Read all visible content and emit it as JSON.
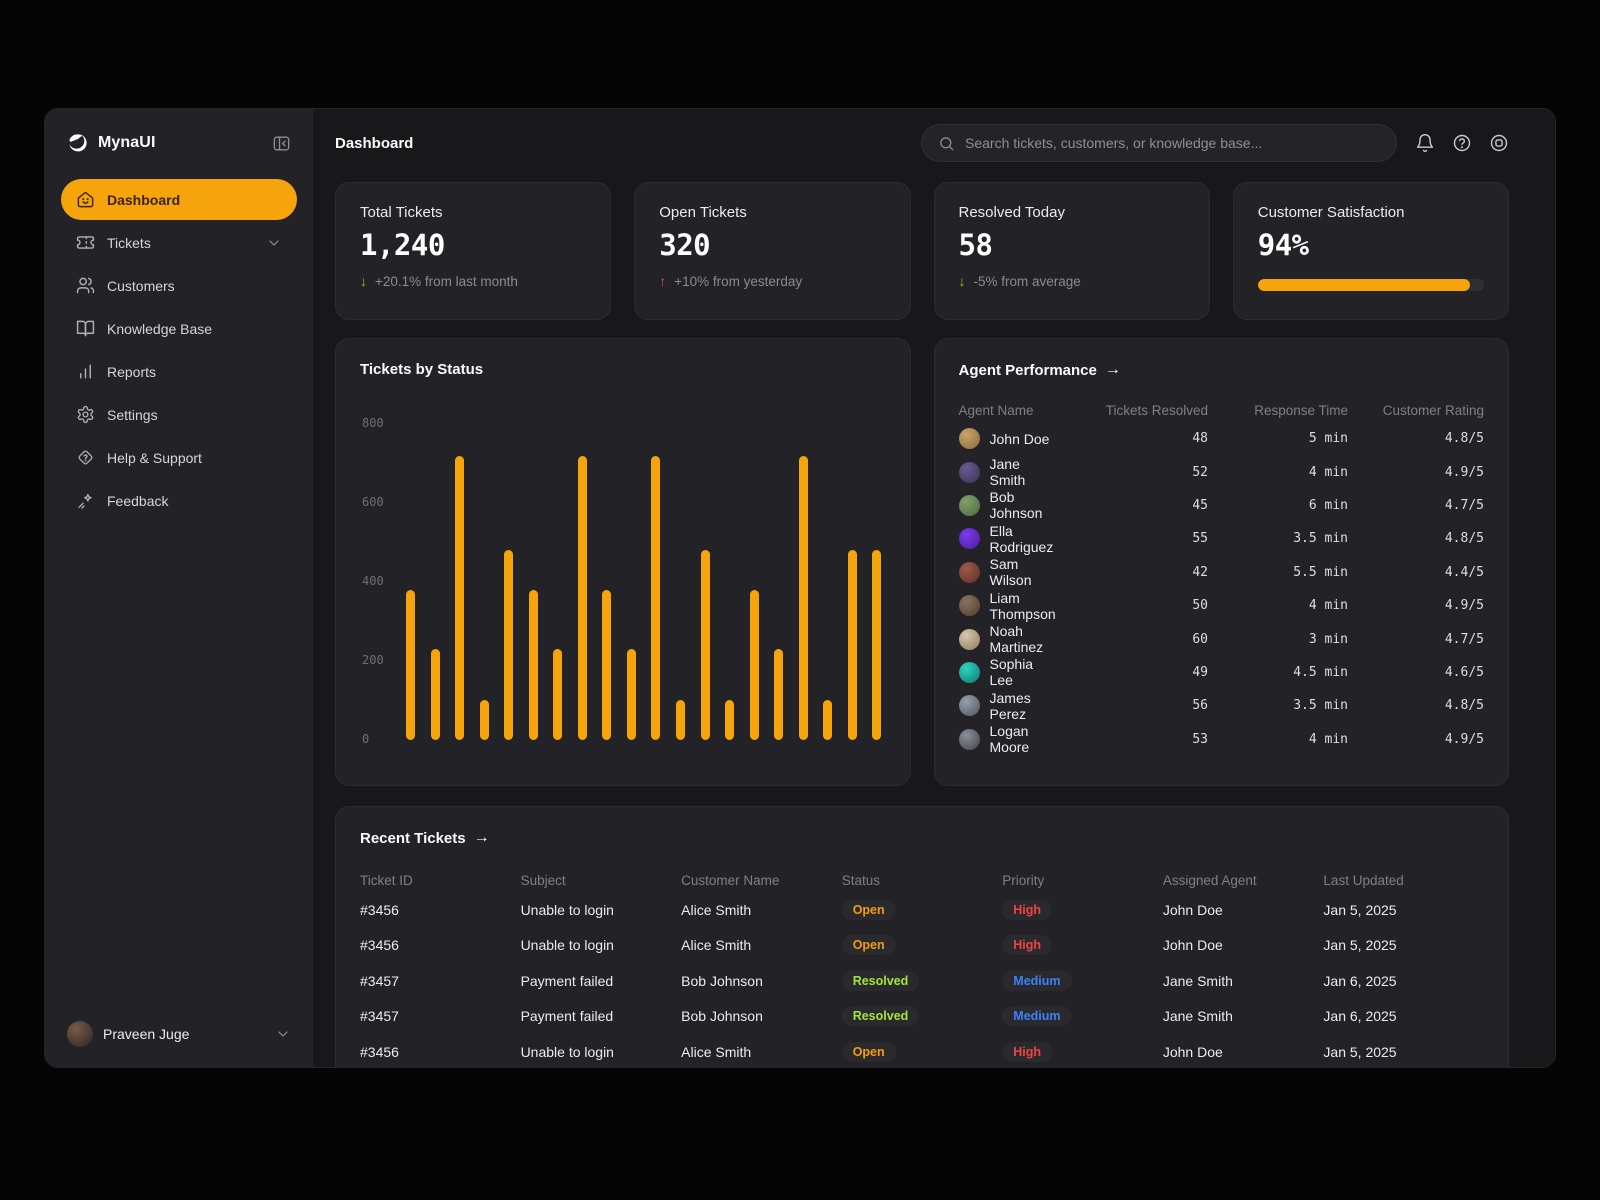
{
  "theme": {
    "accent": "#F5A50B",
    "positive": "#84cc16",
    "negative": "#ef4444"
  },
  "brand": {
    "name": "MynaUI"
  },
  "sidebar": {
    "items": [
      {
        "label": "Dashboard",
        "icon": "home-smile",
        "active": true
      },
      {
        "label": "Tickets",
        "icon": "ticket",
        "chevron": true
      },
      {
        "label": "Customers",
        "icon": "users"
      },
      {
        "label": "Knowledge Base",
        "icon": "book-open"
      },
      {
        "label": "Reports",
        "icon": "bar-chart"
      },
      {
        "label": "Settings",
        "icon": "gear"
      },
      {
        "label": "Help & Support",
        "icon": "help-diamond"
      },
      {
        "label": "Feedback",
        "icon": "sparkles"
      }
    ],
    "user": {
      "name": "Praveen Juge"
    }
  },
  "header": {
    "page_title": "Dashboard",
    "search_placeholder": "Search tickets, customers, or knowledge base..."
  },
  "stats": [
    {
      "title": "Total Tickets",
      "value": "1,240",
      "delta_text": "+20.1% from last month",
      "delta_arrow": "down",
      "delta_color": "#84cc16"
    },
    {
      "title": "Open Tickets",
      "value": "320",
      "delta_text": "+10% from yesterday",
      "delta_arrow": "up",
      "delta_color": "#ef4444"
    },
    {
      "title": "Resolved Today",
      "value": "58",
      "delta_text": "-5% from average",
      "delta_arrow": "down",
      "delta_color": "#84cc16"
    },
    {
      "title": "Customer Satisfaction",
      "value": "94%",
      "progress_percent": 94
    }
  ],
  "chart_data": {
    "type": "bar",
    "title": "Tickets by Status",
    "values": [
      380,
      230,
      720,
      100,
      480,
      380,
      230,
      720,
      380,
      230,
      720,
      100,
      480,
      100,
      380,
      230,
      720,
      100,
      480,
      480
    ],
    "ylim": [
      0,
      800
    ],
    "yticks": [
      0,
      200,
      400,
      600,
      800
    ],
    "bar_color": "#F5A50B",
    "grid": false,
    "x_labels": []
  },
  "agent_performance": {
    "title": "Agent Performance",
    "columns": [
      "Agent Name",
      "Tickets Resolved",
      "Response Time",
      "Customer Rating"
    ],
    "rows": [
      {
        "name": "John Doe",
        "resolved": "48",
        "response": "5 min",
        "rating": "4.8/5"
      },
      {
        "name": "Jane Smith",
        "resolved": "52",
        "response": "4 min",
        "rating": "4.9/5"
      },
      {
        "name": "Bob Johnson",
        "resolved": "45",
        "response": "6 min",
        "rating": "4.7/5"
      },
      {
        "name": "Ella Rodriguez",
        "resolved": "55",
        "response": "3.5 min",
        "rating": "4.8/5"
      },
      {
        "name": "Sam Wilson",
        "resolved": "42",
        "response": "5.5 min",
        "rating": "4.4/5"
      },
      {
        "name": "Liam Thompson",
        "resolved": "50",
        "response": "4 min",
        "rating": "4.9/5"
      },
      {
        "name": "Noah Martinez",
        "resolved": "60",
        "response": "3 min",
        "rating": "4.7/5"
      },
      {
        "name": "Sophia Lee",
        "resolved": "49",
        "response": "4.5 min",
        "rating": "4.6/5"
      },
      {
        "name": "James Perez",
        "resolved": "56",
        "response": "3.5 min",
        "rating": "4.8/5"
      },
      {
        "name": "Logan Moore",
        "resolved": "53",
        "response": "4 min",
        "rating": "4.9/5"
      }
    ]
  },
  "recent_tickets": {
    "title": "Recent Tickets",
    "columns": [
      "Ticket ID",
      "Subject",
      "Customer Name",
      "Status",
      "Priority",
      "Assigned Agent",
      "Last Updated"
    ],
    "rows": [
      {
        "id": "#3456",
        "subject": "Unable to login",
        "customer": "Alice Smith",
        "status": "Open",
        "priority": "High",
        "agent": "John Doe",
        "updated": "Jan 5, 2025"
      },
      {
        "id": "#3456",
        "subject": "Unable to login",
        "customer": "Alice Smith",
        "status": "Open",
        "priority": "High",
        "agent": "John Doe",
        "updated": "Jan 5, 2025"
      },
      {
        "id": "#3457",
        "subject": "Payment failed",
        "customer": "Bob Johnson",
        "status": "Resolved",
        "priority": "Medium",
        "agent": "Jane Smith",
        "updated": "Jan 6, 2025"
      },
      {
        "id": "#3457",
        "subject": "Payment failed",
        "customer": "Bob Johnson",
        "status": "Resolved",
        "priority": "Medium",
        "agent": "Jane Smith",
        "updated": "Jan 6, 2025"
      },
      {
        "id": "#3456",
        "subject": "Unable to login",
        "customer": "Alice Smith",
        "status": "Open",
        "priority": "High",
        "agent": "John Doe",
        "updated": "Jan 5, 2025"
      }
    ],
    "status_colors": {
      "Open": "#f59e0b",
      "Resolved": "#a3e635"
    },
    "priority_colors": {
      "High": "#ef4444",
      "Medium": "#3b82f6"
    }
  }
}
